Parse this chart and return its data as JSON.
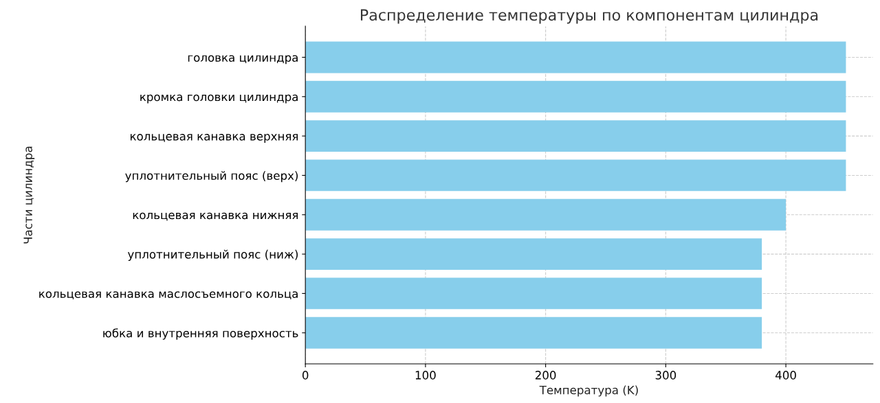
{
  "chart_data": {
    "type": "bar",
    "orientation": "horizontal",
    "title": "Распределение температуры по компонентам цилиндра",
    "xlabel": "Температура (K)",
    "ylabel": "Части цилиндра",
    "categories": [
      "головка цилиндра",
      "кромка головки цилиндра",
      "кольцевая канавка верхняя",
      "уплотнительный пояс (верх)",
      "кольцевая канавка нижняя",
      "уплотнительный пояс (ниж)",
      "кольцевая канавка маслосъемного кольца",
      "юбка и внутренняя поверхность"
    ],
    "values": [
      450,
      450,
      450,
      450,
      400,
      380,
      380,
      380
    ],
    "color": "#87ceeb",
    "xlim": [
      0,
      472.5
    ],
    "xticks": [
      0,
      100,
      200,
      300,
      400
    ],
    "grid": true
  }
}
